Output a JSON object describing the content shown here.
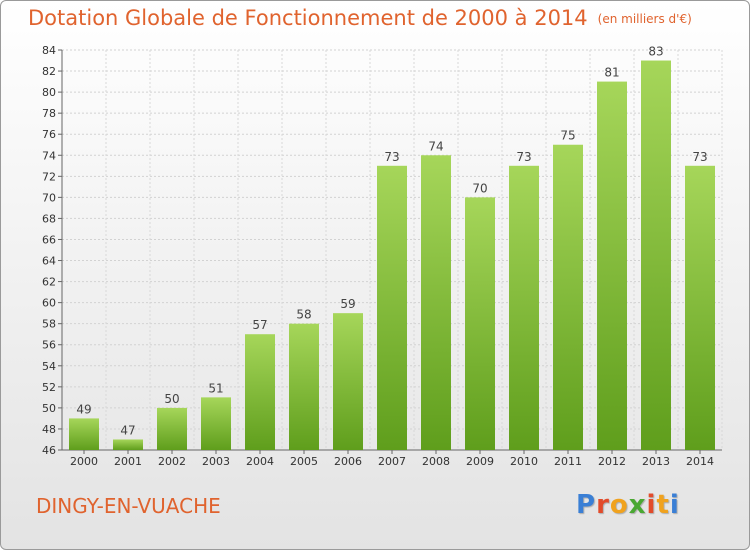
{
  "header": {
    "title": "Dotation Globale de Fonctionnement de 2000 à 2014",
    "unit": "(en milliers d'€)"
  },
  "footer": {
    "place": "DINGY-EN-VUACHE",
    "logo": [
      "P",
      "r",
      "o",
      "x",
      "i",
      "t",
      "i"
    ],
    "logo_colors": [
      "#3a7fd5",
      "#e24b2b",
      "#f0a21e",
      "#4aa832",
      "#e24b2b",
      "#f0a21e",
      "#3a7fd5"
    ]
  },
  "chart_data": {
    "type": "bar",
    "title": "Dotation Globale de Fonctionnement de 2000 à 2014",
    "categories": [
      "2000",
      "2001",
      "2002",
      "2003",
      "2004",
      "2005",
      "2006",
      "2007",
      "2008",
      "2009",
      "2010",
      "2011",
      "2012",
      "2013",
      "2014"
    ],
    "values": [
      49,
      47,
      50,
      51,
      57,
      58,
      59,
      73,
      74,
      70,
      73,
      75,
      81,
      83,
      73
    ],
    "ylim": [
      46,
      84
    ],
    "yticks": [
      46,
      48,
      50,
      52,
      54,
      56,
      58,
      60,
      62,
      64,
      66,
      68,
      70,
      72,
      74,
      76,
      78,
      80,
      82,
      84
    ],
    "grid": true,
    "bar_color_top": "#a6d65a",
    "bar_color_bottom": "#5f9e1c",
    "title_color": "#e0632e"
  }
}
